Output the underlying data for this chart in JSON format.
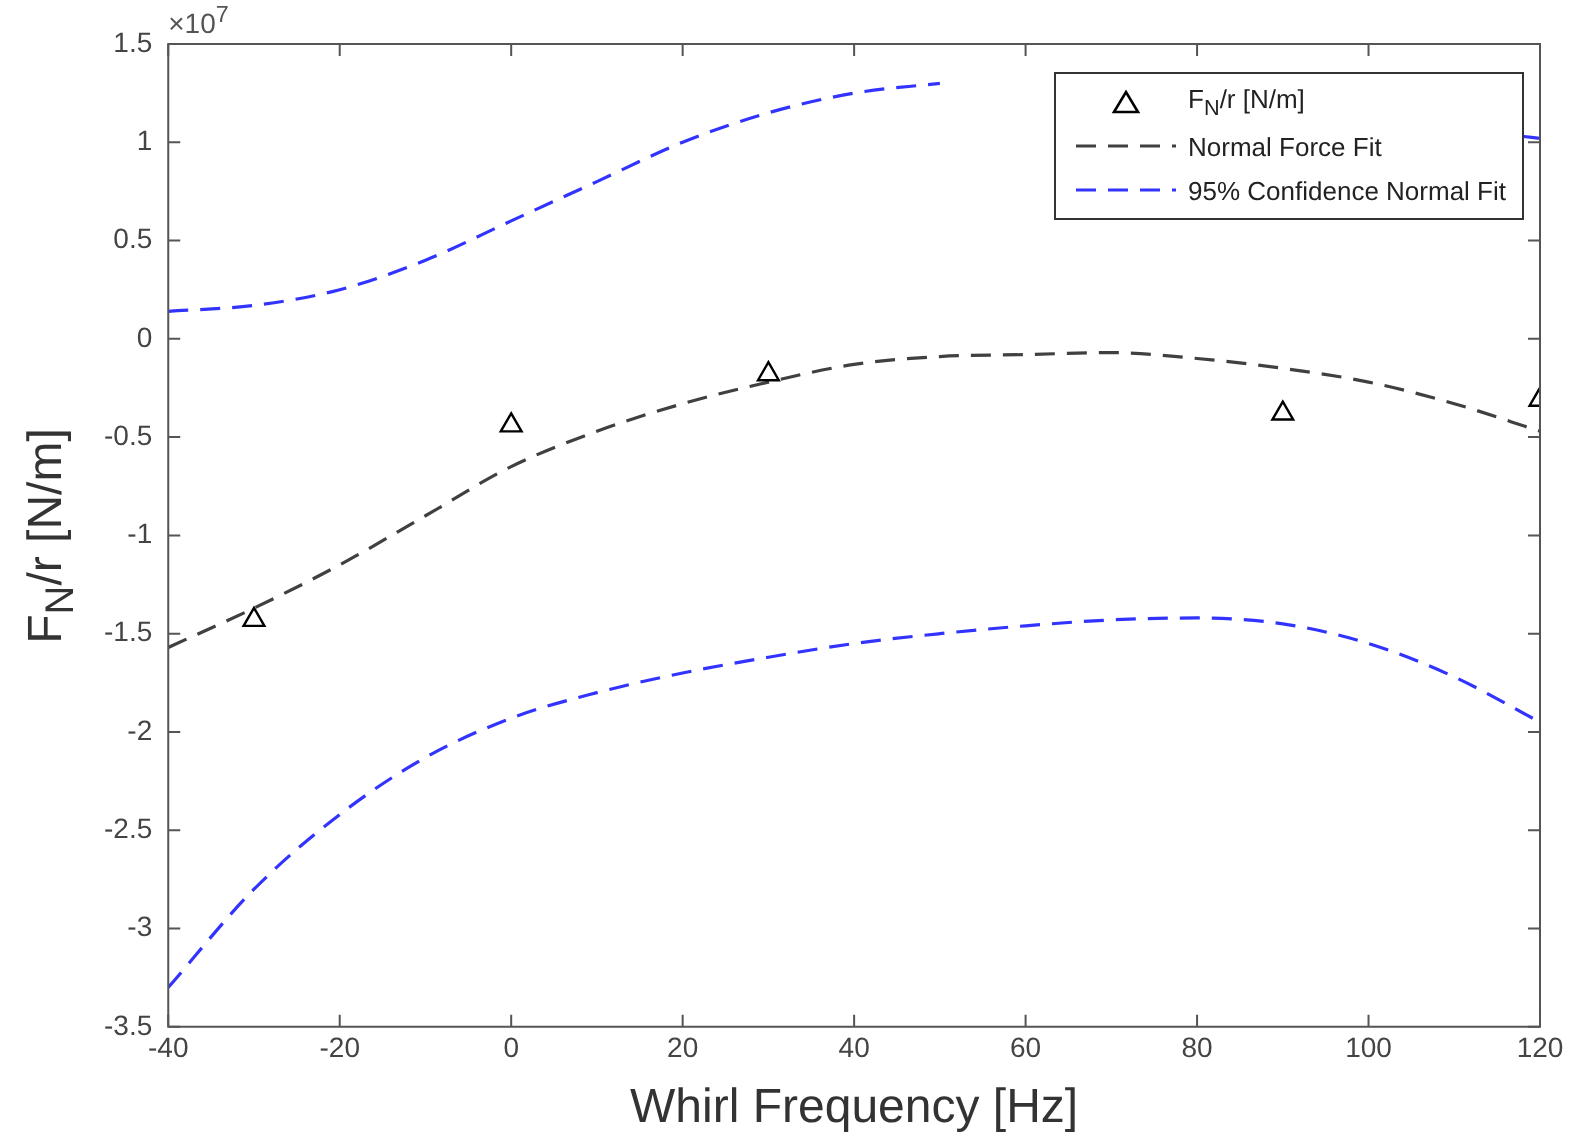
{
  "chart_data": {
    "type": "line",
    "xlabel": "Whirl Frequency [Hz]",
    "ylabel": "F$_{N}$/r [N/m]",
    "annotations": [
      "×10$^{7}$"
    ],
    "xlim": [
      -40,
      120
    ],
    "xticks": [
      -40,
      -20,
      0,
      20,
      40,
      60,
      80,
      100,
      120
    ],
    "ylim": [
      -3.5,
      1.5
    ],
    "yticks": [
      -3.5,
      -3,
      -2.5,
      -2,
      -1.5,
      -1,
      -0.5,
      0,
      0.5,
      1,
      1.5
    ],
    "grid": false,
    "legend": "top right",
    "series": [
      {
        "name": "F$_{N}$/r [N/m]",
        "type": "scatter",
        "marker": "triangle",
        "color": "#000000",
        "x": [
          -30,
          0,
          30,
          90,
          120
        ],
        "values": [
          -1.43,
          -0.44,
          -0.18,
          -0.38,
          -0.31
        ]
      },
      {
        "name": "Normal Force Fit",
        "line_style": "dashed",
        "color": "#404040",
        "x": [
          -40,
          -30,
          -20,
          -10,
          0,
          10,
          20,
          30,
          40,
          50,
          60,
          70,
          80,
          90,
          100,
          110,
          120
        ],
        "values": [
          -1.57,
          -1.37,
          -1.15,
          -0.9,
          -0.65,
          -0.47,
          -0.33,
          -0.22,
          -0.13,
          -0.09,
          -0.08,
          -0.07,
          -0.1,
          -0.15,
          -0.22,
          -0.33,
          -0.47
        ]
      },
      {
        "name": "95% Confidence Normal Fit",
        "line_style": "dashed",
        "color": "#3333ff",
        "x": [
          -40,
          -30,
          -20,
          -10,
          0,
          10,
          20,
          30,
          40,
          50,
          60,
          70,
          80,
          90,
          100,
          110,
          118,
          120
        ],
        "values": [
          0.14,
          0.17,
          0.25,
          0.4,
          0.6,
          0.8,
          1.0,
          1.15,
          1.25,
          1.3,
          null,
          null,
          null,
          null,
          null,
          null,
          1.03,
          1.02
        ]
      },
      {
        "line_style": "dashed",
        "color": "#3333ff",
        "x": [
          -40,
          -30,
          -20,
          -10,
          0,
          10,
          20,
          30,
          40,
          50,
          60,
          70,
          80,
          90,
          100,
          110,
          120
        ],
        "values": [
          -3.3,
          -2.8,
          -2.42,
          -2.13,
          -1.93,
          -1.8,
          -1.7,
          -1.62,
          -1.55,
          -1.5,
          -1.46,
          -1.43,
          -1.42,
          -1.45,
          -1.55,
          -1.72,
          -1.95
        ]
      }
    ]
  }
}
